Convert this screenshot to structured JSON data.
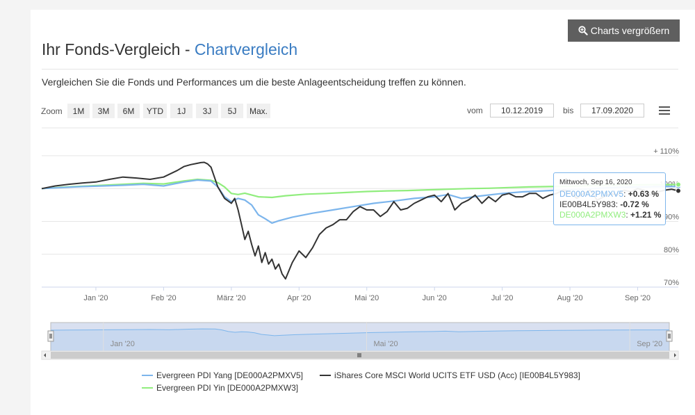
{
  "header": {
    "enlarge_button": "Charts vergrößern",
    "title_main": "Ihr Fonds-Vergleich - ",
    "title_accent": "Chartvergleich",
    "description": "Vergleichen Sie die Fonds und Performances um die beste Anlageentscheidung treffen zu können."
  },
  "controls": {
    "zoom_label": "Zoom",
    "zoom_buttons": [
      "1M",
      "3M",
      "6M",
      "YTD",
      "1J",
      "3J",
      "5J",
      "Max."
    ],
    "from_label": "vom",
    "from_date": "10.12.2019",
    "to_label": "bis",
    "to_date": "17.09.2020"
  },
  "tooltip": {
    "date": "Mittwoch, Sep 16, 2020",
    "rows": [
      {
        "name": "DE000A2PMXV5",
        "value": "+0.63 %",
        "color": "#7cb5ec"
      },
      {
        "name": "IE00B4L5Y983",
        "value": "-0.72 %",
        "color": "#333333"
      },
      {
        "name": "DE000A2PMXW3",
        "value": "+1.21 %",
        "color": "#90ed7d"
      }
    ]
  },
  "legend": [
    {
      "label": "Evergreen PDI Yang [DE000A2PMXV5]",
      "color": "#7cb5ec"
    },
    {
      "label": "iShares Core MSCI World UCITS ETF USD (Acc) [IE00B4L5Y983]",
      "color": "#333333"
    },
    {
      "label": "Evergreen PDI Yin [DE000A2PMXW3]",
      "color": "#90ed7d"
    }
  ],
  "chart_data": {
    "type": "line",
    "title": "",
    "xlabel": "",
    "ylabel": "",
    "ylim": [
      70,
      110
    ],
    "y_ticks": [
      70,
      80,
      90,
      100,
      110
    ],
    "y_tick_labels": [
      "70%",
      "80%",
      "90%",
      "100%",
      "+ 110%"
    ],
    "x_ticks": [
      {
        "t": 0.8,
        "label": "Jan '20"
      },
      {
        "t": 1.8,
        "label": "Feb '20"
      },
      {
        "t": 2.8,
        "label": "März '20"
      },
      {
        "t": 3.8,
        "label": "Apr '20"
      },
      {
        "t": 4.8,
        "label": "Mai '20"
      },
      {
        "t": 5.8,
        "label": "Jun '20"
      },
      {
        "t": 6.8,
        "label": "Jul '20"
      },
      {
        "t": 7.8,
        "label": "Aug '20"
      },
      {
        "t": 8.8,
        "label": "Sep '20"
      }
    ],
    "t_range": [
      0,
      9.4
    ],
    "navigator_ticks": [
      {
        "t": 0.8,
        "label": "Jan '20"
      },
      {
        "t": 4.8,
        "label": "Mai '20"
      },
      {
        "t": 8.8,
        "label": "Sep '20"
      }
    ],
    "series": [
      {
        "name": "DE000A2PMXV5",
        "color": "#7cb5ec",
        "x": [
          0,
          0.3,
          0.6,
          0.9,
          1.2,
          1.5,
          1.8,
          2.1,
          2.3,
          2.5,
          2.6,
          2.7,
          2.8,
          2.9,
          3.0,
          3.1,
          3.2,
          3.3,
          3.4,
          3.5,
          3.7,
          4.0,
          4.3,
          4.6,
          4.9,
          5.2,
          5.5,
          5.8,
          6.0,
          6.2,
          6.5,
          6.8,
          7.1,
          7.4,
          7.7,
          8.0,
          8.3,
          8.6,
          8.9,
          9.2,
          9.4
        ],
        "values": [
          100,
          100.3,
          100.6,
          100.8,
          101,
          101.3,
          100.8,
          102,
          102.6,
          102.3,
          100.5,
          97.5,
          96,
          97,
          96.5,
          95,
          92,
          90.8,
          89.5,
          90.2,
          91.3,
          92.5,
          93.5,
          94.5,
          95.5,
          96.2,
          97,
          97.5,
          98.2,
          97,
          97.8,
          98.5,
          99,
          99.3,
          99.6,
          99.8,
          100.2,
          100.4,
          100.5,
          100.6,
          100.63
        ]
      },
      {
        "name": "IE00B4L5Y983",
        "color": "#333333",
        "x": [
          0,
          0.2,
          0.4,
          0.6,
          0.8,
          1.0,
          1.2,
          1.4,
          1.6,
          1.8,
          2.0,
          2.1,
          2.2,
          2.3,
          2.35,
          2.4,
          2.45,
          2.5,
          2.6,
          2.7,
          2.8,
          2.85,
          2.9,
          2.95,
          3.0,
          3.05,
          3.1,
          3.15,
          3.2,
          3.25,
          3.3,
          3.35,
          3.4,
          3.45,
          3.5,
          3.55,
          3.6,
          3.7,
          3.8,
          3.9,
          4.0,
          4.1,
          4.2,
          4.3,
          4.4,
          4.5,
          4.6,
          4.7,
          4.8,
          4.9,
          5.0,
          5.1,
          5.2,
          5.3,
          5.4,
          5.5,
          5.6,
          5.7,
          5.8,
          5.9,
          6.0,
          6.1,
          6.2,
          6.3,
          6.4,
          6.5,
          6.6,
          6.7,
          6.8,
          6.9,
          7.0,
          7.1,
          7.2,
          7.3,
          7.4,
          7.5,
          7.6,
          7.7,
          7.8,
          7.9,
          8.0,
          8.1,
          8.2,
          8.3,
          8.4,
          8.5,
          8.6,
          8.7,
          8.8,
          8.9,
          9.0,
          9.1,
          9.2,
          9.3,
          9.4
        ],
        "values": [
          100,
          100.8,
          101.3,
          101.7,
          102,
          102.8,
          103.5,
          103.2,
          102.8,
          103.5,
          105.5,
          106.7,
          107.3,
          107.7,
          107.9,
          108,
          107.5,
          106.5,
          100.5,
          97,
          95.5,
          97,
          93.5,
          89,
          84.5,
          87,
          83,
          79.5,
          82.5,
          77.5,
          80.5,
          77,
          78.5,
          75.5,
          77,
          74,
          72.5,
          77.5,
          81,
          79,
          82,
          86,
          88,
          89,
          90.5,
          90.5,
          93,
          94.5,
          93.5,
          93.5,
          91.5,
          93,
          96,
          93.5,
          94,
          95.5,
          96.5,
          97.5,
          98,
          96,
          98.5,
          93.5,
          95.5,
          96.5,
          98,
          95.5,
          97.5,
          96,
          98,
          98.5,
          97.5,
          97.5,
          98.5,
          98.5,
          97,
          98,
          98.5,
          99.5,
          99,
          97,
          98.5,
          99.5,
          96.5,
          97.5,
          98.5,
          98,
          99.5,
          99,
          100,
          99.5,
          98,
          99,
          99.5,
          99.8,
          99.3
        ]
      },
      {
        "name": "DE000A2PMXW3",
        "color": "#90ed7d",
        "x": [
          0,
          0.3,
          0.6,
          0.9,
          1.2,
          1.5,
          1.8,
          2.1,
          2.3,
          2.5,
          2.6,
          2.7,
          2.8,
          2.9,
          3.0,
          3.2,
          3.4,
          3.6,
          3.9,
          4.2,
          4.5,
          4.8,
          5.1,
          5.4,
          5.7,
          6.0,
          6.3,
          6.6,
          6.9,
          7.2,
          7.5,
          7.8,
          8.1,
          8.4,
          8.7,
          9.0,
          9.2,
          9.4
        ],
        "values": [
          100,
          100.4,
          100.7,
          101,
          101.3,
          101.6,
          101.4,
          102.3,
          102.8,
          102.5,
          101.8,
          100.5,
          98.5,
          98.2,
          98.6,
          97.5,
          97.3,
          97.8,
          98.3,
          98.5,
          98.8,
          99.1,
          99.3,
          99.4,
          99.6,
          99.8,
          100,
          100.1,
          100.3,
          100.5,
          100.6,
          100.7,
          100.9,
          101,
          101.1,
          101.2,
          101.2,
          101.21
        ]
      }
    ]
  }
}
